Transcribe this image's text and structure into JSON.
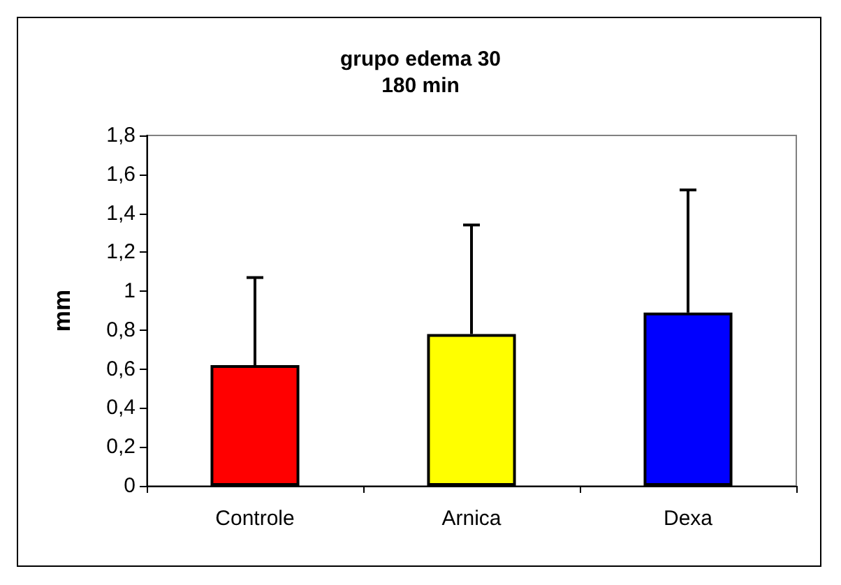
{
  "chart_data": {
    "type": "bar",
    "title": "grupo edema 30",
    "subtitle": "180 min",
    "ylabel": "mm",
    "categories": [
      "Controle",
      "Arnica",
      "Dexa"
    ],
    "values": [
      0.62,
      0.78,
      0.89
    ],
    "colors": [
      "#ff0000",
      "#ffff00",
      "#0000ff"
    ],
    "errors": [
      [
        0.62,
        1.07
      ],
      [
        0.78,
        1.34
      ],
      [
        0.89,
        1.52
      ]
    ],
    "ylim": [
      0,
      1.8
    ],
    "yticks": [
      0,
      {
        "value": 0.2,
        "label": "0,2"
      },
      {
        "value": 0.4,
        "label": "0,4"
      },
      {
        "value": 0.6,
        "label": "0,6"
      },
      {
        "value": 0.8,
        "label": "0,8"
      },
      1,
      {
        "value": 1.2,
        "label": "1,2"
      },
      {
        "value": 1.4,
        "label": "1,4"
      },
      {
        "value": 1.6,
        "label": "1,6"
      },
      {
        "value": 1.8,
        "label": "1,8"
      }
    ],
    "grid": false
  }
}
